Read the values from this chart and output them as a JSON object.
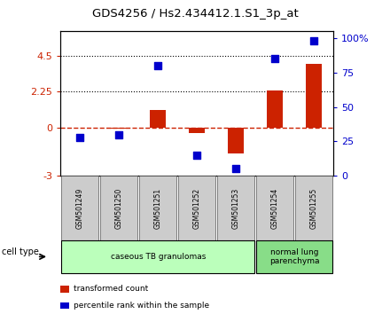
{
  "title": "GDS4256 / Hs2.434412.1.S1_3p_at",
  "samples": [
    "GSM501249",
    "GSM501250",
    "GSM501251",
    "GSM501252",
    "GSM501253",
    "GSM501254",
    "GSM501255"
  ],
  "transformed_count": [
    0.02,
    -0.05,
    1.1,
    -0.35,
    -1.6,
    2.3,
    4.0
  ],
  "percentile_rank": [
    28,
    30,
    80,
    15,
    5,
    85,
    98
  ],
  "ylim_left": [
    -3,
    6
  ],
  "yticks_left": [
    -3,
    0,
    2.25,
    4.5
  ],
  "ytick_labels_left": [
    "-3",
    "0",
    "2.25",
    "4.5"
  ],
  "ylim_right": [
    0,
    105
  ],
  "yticks_right": [
    0,
    25,
    50,
    75,
    100
  ],
  "ytick_labels_right": [
    "0",
    "25",
    "50",
    "75",
    "100%"
  ],
  "hline_y": 0.0,
  "dotted_lines": [
    4.5,
    2.25
  ],
  "bar_color": "#cc2200",
  "scatter_color": "#0000cc",
  "cell_type_groups": [
    {
      "label": "caseous TB granulomas",
      "samples": [
        0,
        1,
        2,
        3,
        4
      ],
      "color": "#bbffbb"
    },
    {
      "label": "normal lung\nparenchyma",
      "samples": [
        5,
        6
      ],
      "color": "#88dd88"
    }
  ],
  "legend_items": [
    {
      "label": "transformed count",
      "color": "#cc2200"
    },
    {
      "label": "percentile rank within the sample",
      "color": "#0000cc"
    }
  ],
  "cell_type_label": "cell type",
  "sample_box_color": "#cccccc",
  "bg_color": "#ffffff",
  "plot_bg_color": "#ffffff",
  "tick_label_color_left": "#cc2200",
  "tick_label_color_right": "#0000cc",
  "bar_width": 0.4,
  "scatter_size": 28
}
